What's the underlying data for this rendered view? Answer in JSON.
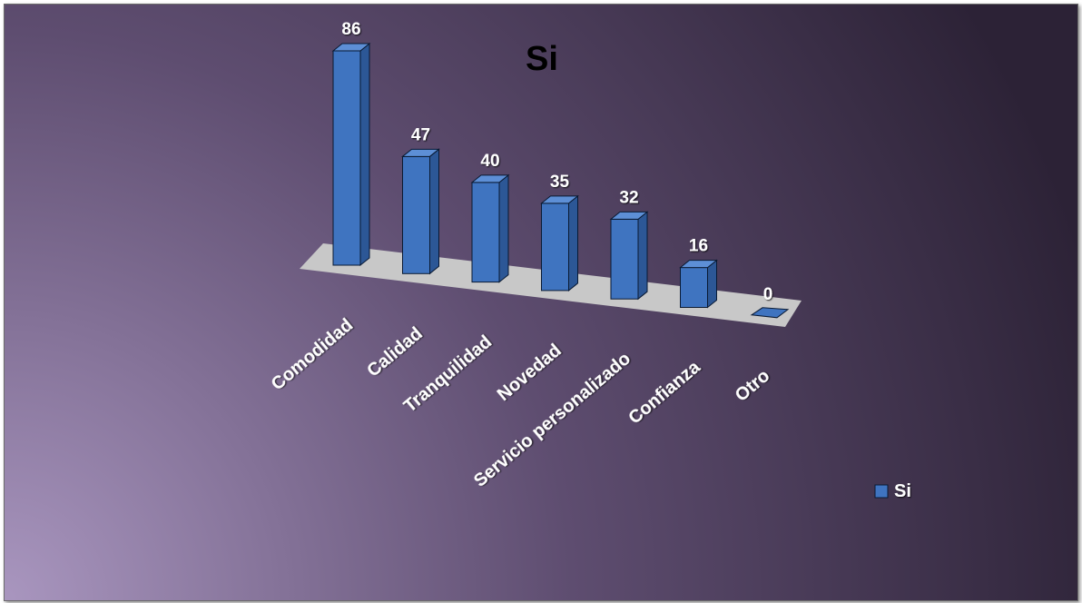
{
  "chart_data": {
    "type": "bar",
    "title": "Si",
    "categories": [
      "Comodidad",
      "Calidad",
      "Tranquilidad",
      "Novedad",
      "Servicio personalizado",
      "Confianza",
      "Otro"
    ],
    "series": [
      {
        "name": "Si",
        "values": [
          86,
          47,
          40,
          35,
          32,
          16,
          0
        ]
      }
    ],
    "xlabel": "",
    "ylabel": "",
    "ylim": [
      0,
      86
    ],
    "grid": false,
    "legend": "right",
    "style": "3d-column",
    "colors": {
      "bar_front": "#3f74c0",
      "bar_side": "#2c5796",
      "bar_top": "#5d8fd6",
      "bar_outline": "#0a1a33",
      "floor": "#c8c8c8",
      "background_light": "#a996bf",
      "background_dark": "#2c2236",
      "title_text": "#000000",
      "label_text": "#ffffff"
    }
  }
}
